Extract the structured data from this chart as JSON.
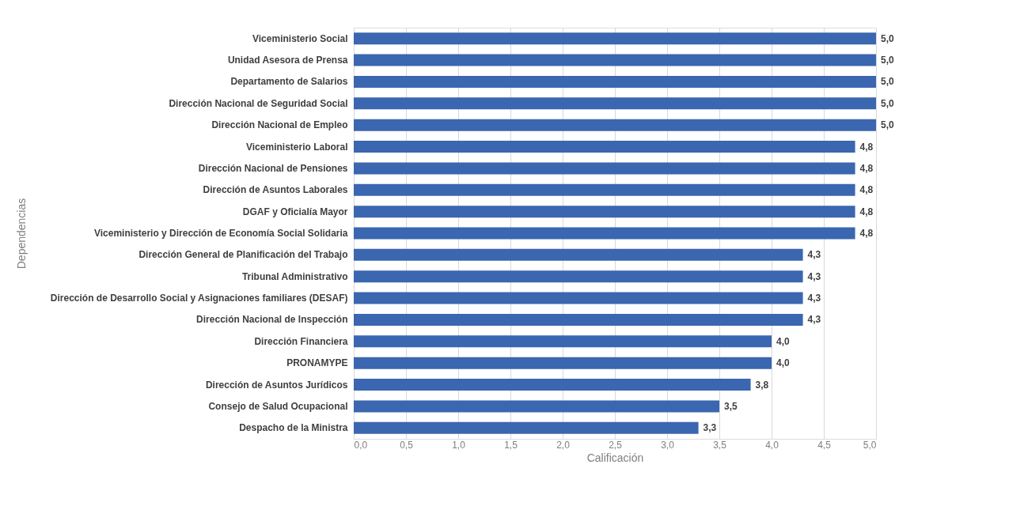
{
  "chart_data": {
    "type": "bar",
    "orientation": "horizontal",
    "xlabel": "Calificación",
    "ylabel": "Dependencias",
    "categories": [
      "Viceministerio Social",
      "Unidad Asesora de Prensa",
      "Departamento de Salarios",
      "Dirección Nacional de Seguridad Social ",
      "Dirección Nacional de Empleo",
      "Viceministerio Laboral",
      "Dirección Nacional de Pensiones",
      "Dirección de Asuntos Laborales",
      "DGAF y Oficialía Mayor",
      "Viceministerio y Dirección de Economía Social Solidaria",
      "Dirección General de Planificación del Trabajo",
      "Tribunal Administrativo",
      "Dirección de Desarrollo Social y Asignaciones familiares (DESAF)",
      "Dirección Nacional de Inspección",
      "Dirección Financiera",
      "PRONAMYPE",
      "Dirección de Asuntos Jurídicos",
      "Consejo de Salud Ocupacional",
      "Despacho de la Ministra"
    ],
    "values": [
      5.0,
      5.0,
      5.0,
      5.0,
      5.0,
      4.8,
      4.8,
      4.8,
      4.8,
      4.8,
      4.3,
      4.3,
      4.3,
      4.3,
      4.0,
      4.0,
      3.8,
      3.5,
      3.3
    ],
    "value_labels": [
      "5,0",
      "5,0",
      "5,0",
      "5,0",
      "5,0",
      "4,8",
      "4,8",
      "4,8",
      "4,8",
      "4,8",
      "4,3",
      "4,3",
      "4,3",
      "4,3",
      "4,0",
      "4,0",
      "3,8",
      "3,5",
      "3,3"
    ],
    "color": "#3b66b0",
    "xlim": [
      0,
      5
    ],
    "xticks": [
      {
        "value": 0,
        "label": "0,0"
      },
      {
        "value": 0.5,
        "label": "0,5"
      },
      {
        "value": 1,
        "label": "1,0"
      },
      {
        "value": 1.5,
        "label": "1,5"
      },
      {
        "value": 2,
        "label": "2,0"
      },
      {
        "value": 2.5,
        "label": "2,5"
      },
      {
        "value": 3,
        "label": "3,0"
      },
      {
        "value": 3.5,
        "label": "3,5"
      },
      {
        "value": 4,
        "label": "4,0"
      },
      {
        "value": 4.5,
        "label": "4,5"
      },
      {
        "value": 5,
        "label": "5,0"
      }
    ],
    "grid": "x"
  }
}
